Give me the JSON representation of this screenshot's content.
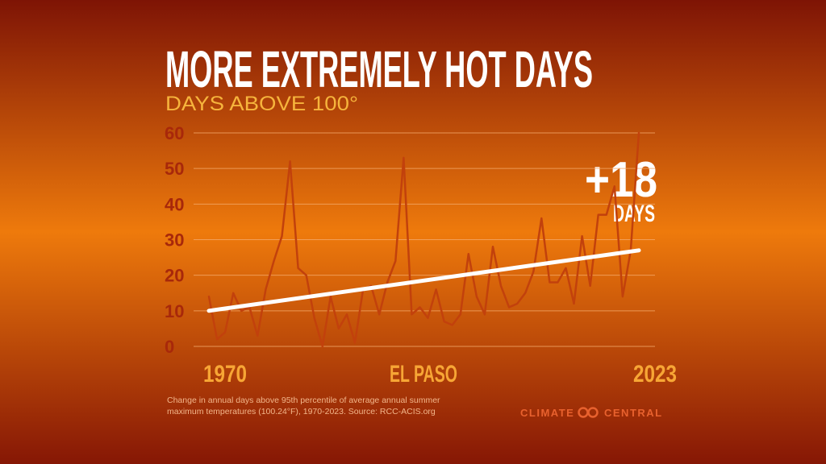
{
  "chart_data": {
    "type": "line",
    "title": "MORE EXTREMELY HOT DAYS",
    "subtitle": "DAYS ABOVE 100°",
    "x": [
      1970,
      1971,
      1972,
      1973,
      1974,
      1975,
      1976,
      1977,
      1978,
      1979,
      1980,
      1981,
      1982,
      1983,
      1984,
      1985,
      1986,
      1987,
      1988,
      1989,
      1990,
      1991,
      1992,
      1993,
      1994,
      1995,
      1996,
      1997,
      1998,
      1999,
      2000,
      2001,
      2002,
      2003,
      2004,
      2005,
      2006,
      2007,
      2008,
      2009,
      2010,
      2011,
      2012,
      2013,
      2014,
      2015,
      2016,
      2017,
      2018,
      2019,
      2020,
      2021,
      2022,
      2023
    ],
    "series": [
      {
        "color": "#c2410c",
        "values": [
          14,
          2,
          4,
          15,
          10,
          11,
          3,
          16,
          24,
          31,
          52,
          22,
          20,
          8,
          0,
          14,
          5,
          9,
          1,
          16,
          17,
          9,
          18,
          24,
          53,
          9,
          11,
          8,
          16,
          7,
          6,
          9,
          26,
          14,
          9,
          28,
          17,
          11,
          12,
          15,
          21,
          36,
          18,
          18,
          22,
          12,
          31,
          17,
          37,
          37,
          45,
          14,
          27,
          60
        ]
      }
    ],
    "trend": {
      "color": "#ffffff",
      "x": [
        1970,
        2023
      ],
      "values": [
        10,
        27
      ]
    },
    "xlim": [
      1970,
      2023
    ],
    "xticks": [
      1970,
      2023
    ],
    "ylim": [
      0,
      60
    ],
    "yticks": [
      0,
      10,
      20,
      30,
      40,
      50,
      60
    ],
    "grid": true,
    "location": "EL PASO",
    "change": "+18",
    "change_unit": "DAYS",
    "footnote": [
      "Change in annual days above 95th percentile of average annual summer",
      "maximum temperatures (100.24°F), 1970-2023. Source: RCC-ACIS.org"
    ],
    "brand": [
      "CLIMATE",
      "CENTRAL"
    ]
  }
}
